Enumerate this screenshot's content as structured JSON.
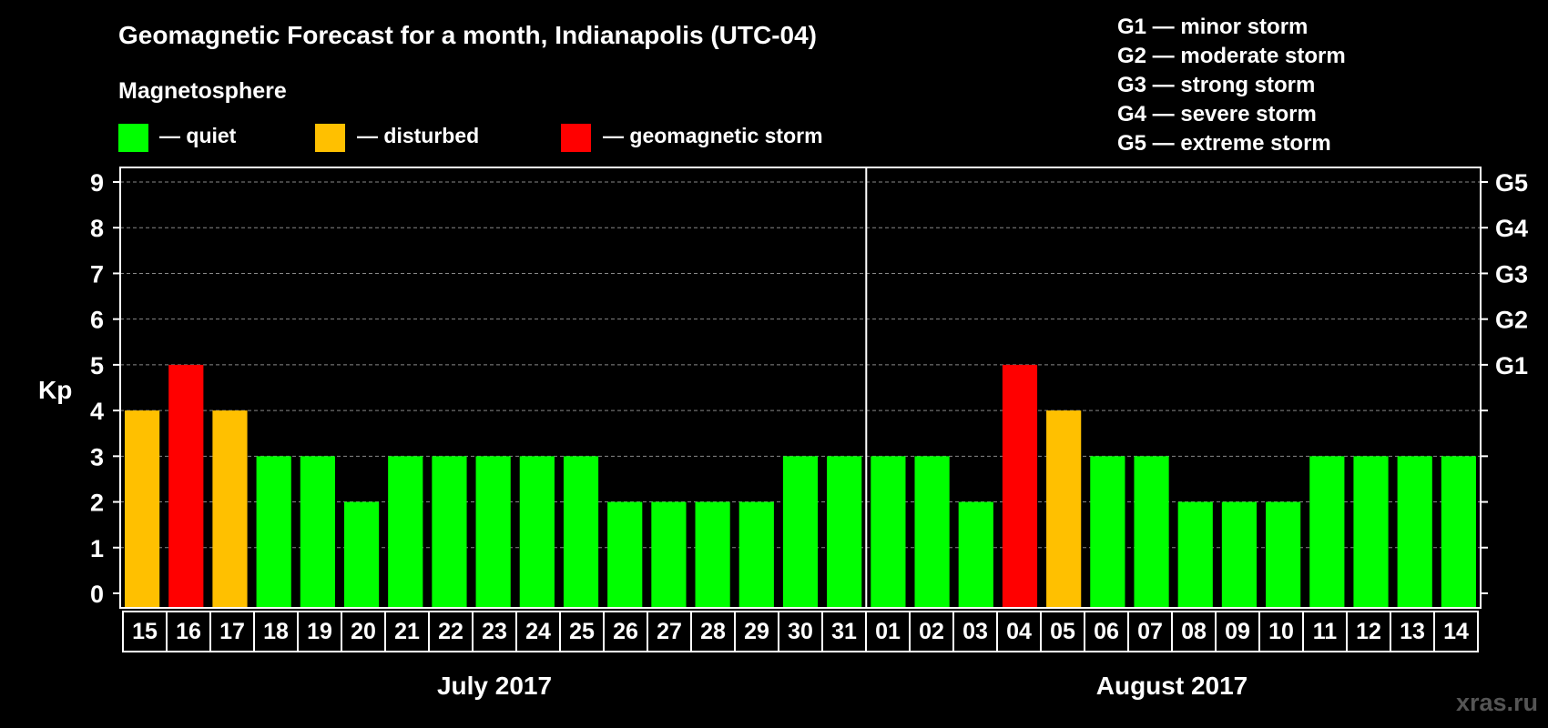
{
  "chart_data": {
    "type": "bar",
    "title": "Geomagnetic Forecast for a month, Indianapolis (UTC-04)",
    "legend": {
      "title": "Magnetosphere",
      "placement": "top-left",
      "items": [
        {
          "label": "— quiet",
          "color": "#00ff00"
        },
        {
          "label": "— disturbed",
          "color": "#ffc000"
        },
        {
          "label": "— geomagnetic storm",
          "color": "#ff0000"
        }
      ]
    },
    "storm_scale": [
      "G1 — minor storm",
      "G2 — moderate storm",
      "G3 — strong storm",
      "G4 — severe storm",
      "G5 — extreme storm"
    ],
    "ylabel": "Kp",
    "ylim": [
      0,
      9
    ],
    "yticks": [
      "0",
      "1",
      "2",
      "3",
      "4",
      "5",
      "6",
      "7",
      "8",
      "9"
    ],
    "right_axis_labels": [
      {
        "value": 5,
        "label": "G1"
      },
      {
        "value": 6,
        "label": "G2"
      },
      {
        "value": 7,
        "label": "G3"
      },
      {
        "value": 8,
        "label": "G4"
      },
      {
        "value": 9,
        "label": "G5"
      }
    ],
    "grid": true,
    "months": [
      {
        "label": "July 2017",
        "days": 17
      },
      {
        "label": "August 2017",
        "days": 14
      }
    ],
    "categories": [
      "15",
      "16",
      "17",
      "18",
      "19",
      "20",
      "21",
      "22",
      "23",
      "24",
      "25",
      "26",
      "27",
      "28",
      "29",
      "30",
      "31",
      "01",
      "02",
      "03",
      "04",
      "05",
      "06",
      "07",
      "08",
      "09",
      "10",
      "11",
      "12",
      "13",
      "14"
    ],
    "values": [
      4,
      5,
      4,
      3,
      3,
      2,
      3,
      3,
      3,
      3,
      3,
      2,
      2,
      2,
      2,
      3,
      3,
      3,
      3,
      2,
      5,
      4,
      3,
      3,
      2,
      2,
      2,
      3,
      3,
      3,
      3
    ],
    "status_colors": {
      "quiet": "#00ff00",
      "disturbed": "#ffc000",
      "storm": "#ff0000"
    }
  },
  "watermark": "xras.ru"
}
